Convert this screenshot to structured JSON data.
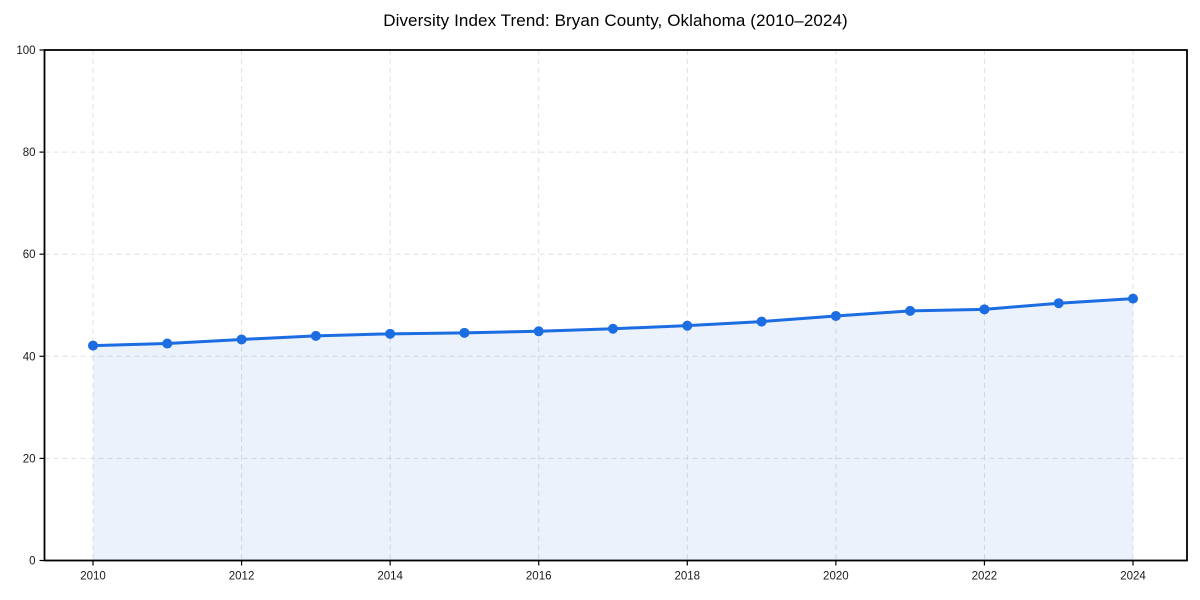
{
  "chart_data": {
    "type": "area",
    "title": "Diversity Index Trend: Bryan County, Oklahoma (2010–2024)",
    "x": [
      2010,
      2011,
      2012,
      2013,
      2014,
      2015,
      2016,
      2017,
      2018,
      2019,
      2020,
      2021,
      2022,
      2023,
      2024
    ],
    "series": [
      {
        "name": "Diversity Index",
        "values": [
          42.1,
          42.5,
          43.3,
          44.0,
          44.4,
          44.6,
          44.9,
          45.4,
          46.0,
          46.8,
          47.9,
          48.9,
          49.2,
          50.4,
          51.3
        ]
      }
    ],
    "xlabel": "",
    "ylabel": "",
    "ylim": [
      0,
      100
    ],
    "yticks": [
      0,
      20,
      40,
      60,
      80,
      100
    ],
    "xticks": [
      2010,
      2012,
      2014,
      2016,
      2018,
      2020,
      2022,
      2024
    ],
    "grid": true,
    "grid_style": "dashed",
    "legend_position": "none",
    "marker": "circle",
    "colors": {
      "line": "#1c6ce2",
      "marker": "#1c6ce2",
      "fill": "#1c6ce2",
      "fill_opacity": "0.09",
      "grid": "#e0e0e0",
      "axis": "#000000",
      "text": "#1a1a1a",
      "background": "#ffffff"
    }
  }
}
